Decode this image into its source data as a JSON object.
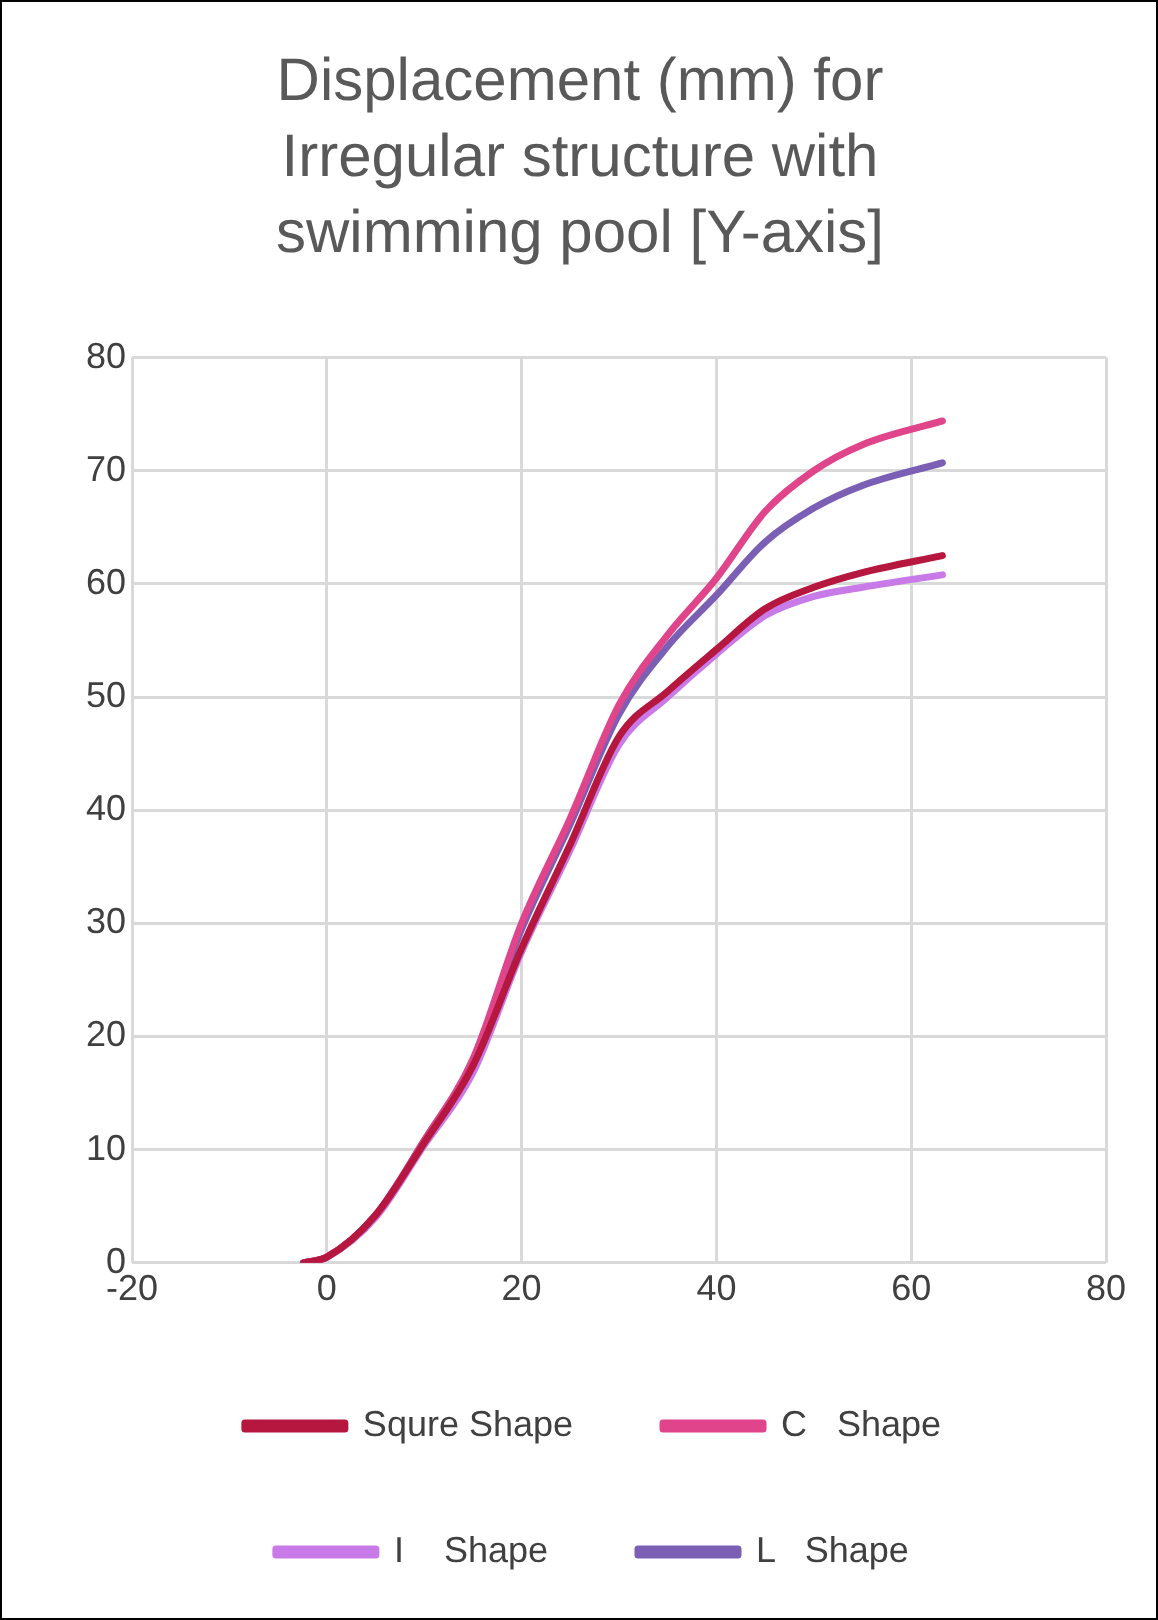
{
  "chart_data": {
    "type": "line",
    "title": "Displacement (mm) for Irregular structure with swimming pool [Y-axis]",
    "x": [
      -2.4,
      0,
      5,
      10,
      15,
      20,
      25,
      30,
      35,
      40,
      45,
      50,
      55,
      63.2
    ],
    "series": [
      {
        "name": "Squre Shape",
        "color": "#b5173f",
        "values": [
          0,
          0.5,
          4.2,
          10.6,
          17.4,
          27.8,
          37,
          46.5,
          50.5,
          54.2,
          57.8,
          59.7,
          61.0,
          62.5
        ]
      },
      {
        "name": "C   Shape",
        "color": "#e0448a",
        "values": [
          0,
          0.5,
          4.2,
          10.8,
          18,
          30,
          39.3,
          49.3,
          55.5,
          60.5,
          66.4,
          70.0,
          72.3,
          74.4
        ]
      },
      {
        "name": "I    Shape",
        "color": "#c77ae8",
        "values": [
          0,
          0.5,
          4.0,
          10.4,
          16.8,
          27.5,
          36.5,
          45.8,
          50,
          53.8,
          57.2,
          58.9,
          59.7,
          60.8
        ]
      },
      {
        "name": "L   Shape",
        "color": "#7b5fb5",
        "values": [
          0,
          0.5,
          4.2,
          10.8,
          17.9,
          29.5,
          38.8,
          48.5,
          54.5,
          59.0,
          63.7,
          66.7,
          68.7,
          70.7
        ]
      }
    ],
    "xlim": [
      -20,
      80
    ],
    "xticks": [
      -20,
      0,
      20,
      40,
      60,
      80
    ],
    "ylim": [
      0,
      80
    ],
    "yticks": [
      0,
      10,
      20,
      30,
      40,
      50,
      60,
      70,
      80
    ],
    "grid": true,
    "legend": "bottom",
    "marker": "none",
    "line_style": "solid"
  }
}
